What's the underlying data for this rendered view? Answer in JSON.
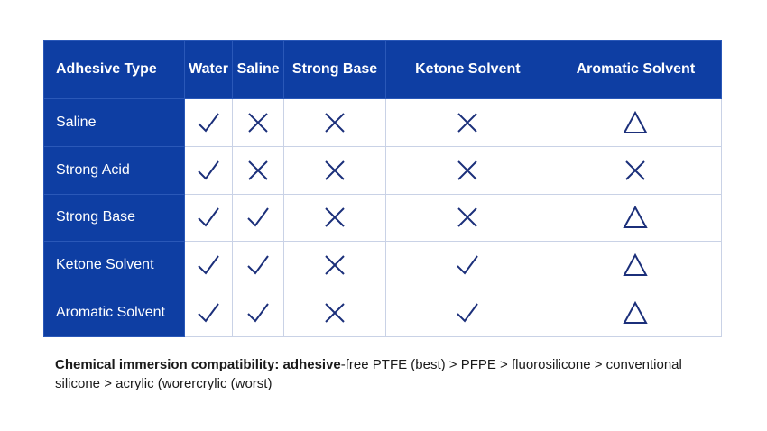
{
  "header": {
    "corner": "Adhesive Type",
    "columns": [
      "Water",
      "Saline",
      "Strong Base",
      "Ketone Solvent",
      "Aromatic Solvent"
    ]
  },
  "rows": [
    {
      "label": "Saline",
      "marks": [
        "check",
        "cross",
        "cross",
        "cross",
        "triangle"
      ]
    },
    {
      "label": "Strong Acid",
      "marks": [
        "check",
        "cross",
        "cross",
        "cross",
        "cross"
      ]
    },
    {
      "label": "Strong Base",
      "marks": [
        "check",
        "check",
        "cross",
        "cross",
        "triangle"
      ]
    },
    {
      "label": "Ketone Solvent",
      "marks": [
        "check",
        "check",
        "cross",
        "check",
        "triangle"
      ]
    },
    {
      "label": "Aromatic Solvent",
      "marks": [
        "check",
        "check",
        "cross",
        "check",
        "triangle"
      ]
    }
  ],
  "caption": {
    "bold": "Chemical immersion compatibility: adhesive",
    "rest": "-free PTFE (best) > PFPE > fluorosilicone > conventional silicone > acrylic (worercrylic (worst)"
  },
  "colors": {
    "header_bg": "#0e3ea3",
    "mark": "#1b2f7a",
    "grid": "#c9d2e6"
  }
}
